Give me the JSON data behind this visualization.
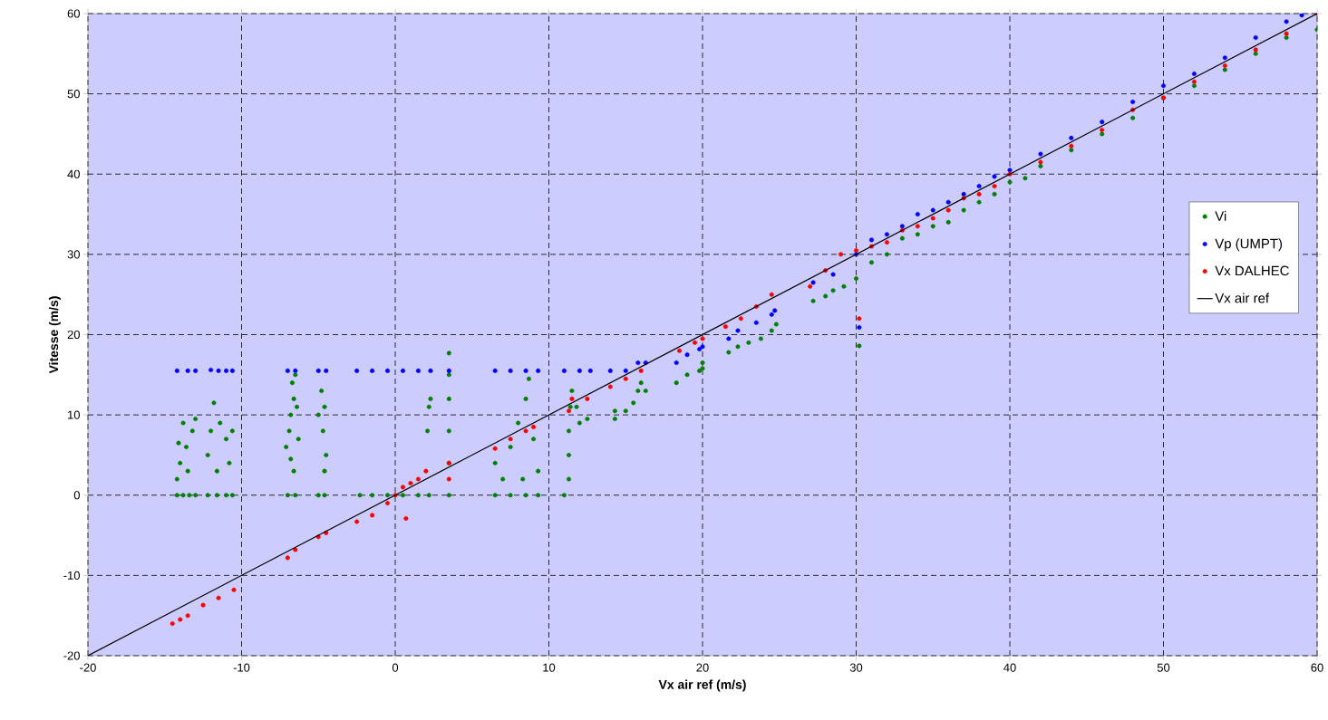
{
  "chart_data": {
    "type": "scatter",
    "xlabel": "Vx air ref (m/s)",
    "ylabel": "Vitesse (m/s)",
    "xlim": [
      -20,
      60
    ],
    "ylim": [
      -20,
      60
    ],
    "xticks": [
      -20,
      -10,
      0,
      10,
      20,
      30,
      40,
      50,
      60
    ],
    "yticks": [
      -20,
      -10,
      0,
      10,
      20,
      30,
      40,
      50,
      60
    ],
    "grid": true,
    "legend": "right",
    "marker": "circle",
    "series": [
      {
        "name": "Vi",
        "color": "#008000",
        "x": [
          -14.2,
          -13.8,
          -13.4,
          -13.0,
          -14.2,
          -14.0,
          -13.6,
          -13.2,
          -13.8,
          -13.0,
          -14.1,
          -13.5,
          -12.2,
          -11.6,
          -11.0,
          -10.6,
          -12.2,
          -12.0,
          -11.8,
          -11.4,
          -11.0,
          -10.6,
          -10.8,
          -11.6,
          -7.0,
          -6.5,
          -7.1,
          -6.9,
          -6.8,
          -6.6,
          -6.7,
          -6.5,
          -6.4,
          -6.3,
          -6.6,
          -6.8,
          -5.0,
          -4.6,
          -5.0,
          -4.8,
          -4.7,
          -4.6,
          -4.5,
          -4.6,
          -2.3,
          -1.5,
          -0.5,
          0.5,
          1.5,
          2.2,
          2.1,
          2.2,
          2.3,
          3.5,
          3.5,
          3.5,
          3.5,
          3.5,
          3.5,
          6.5,
          7.5,
          8.5,
          9.3,
          6.5,
          7.0,
          7.5,
          8.0,
          8.5,
          8.7,
          9.0,
          9.3,
          8.3,
          11.0,
          11.3,
          11.3,
          11.3,
          11.4,
          11.5,
          12.0,
          12.5,
          11.8,
          14.3,
          14.3,
          15.0,
          15.5,
          15.8,
          16.0,
          16.3,
          18.3,
          19.0,
          19.8,
          20.0,
          20.0,
          21.7,
          22.3,
          23.0,
          23.8,
          24.5,
          24.8,
          27.2,
          28.0,
          28.5,
          29.2,
          30.0,
          30.2,
          31,
          32,
          33,
          34,
          35,
          36,
          37,
          38,
          39,
          40,
          41,
          42,
          44,
          46,
          48,
          50,
          52,
          54,
          56,
          58,
          60
        ],
        "values": [
          0,
          0,
          0,
          0,
          2,
          4,
          6,
          8,
          9,
          9.5,
          6.5,
          3,
          0,
          0,
          0,
          0,
          5,
          8,
          11.5,
          9,
          7,
          8,
          4,
          3,
          0,
          0,
          6,
          8,
          10,
          12,
          14,
          15,
          11,
          7,
          3,
          4.5,
          0,
          0,
          10,
          13,
          8,
          11,
          5,
          3,
          0,
          0,
          0,
          0,
          0,
          0,
          8,
          11,
          12,
          0,
          4,
          8,
          12,
          15,
          17.7,
          0,
          0,
          0,
          0,
          4,
          2,
          6,
          9,
          12,
          14.5,
          7,
          3,
          2,
          0,
          2,
          5,
          8,
          11,
          13,
          9,
          9.5,
          11,
          9.5,
          10.5,
          10.5,
          11.5,
          13,
          14,
          13,
          14,
          15,
          15.5,
          16.5,
          15.8,
          17.8,
          18.5,
          19,
          19.5,
          20.5,
          21.3,
          24.2,
          24.8,
          25.5,
          26,
          27,
          18.6,
          29,
          30,
          32,
          32.5,
          33.5,
          34,
          35.5,
          36.5,
          37.5,
          39,
          39.5,
          41,
          43,
          45,
          47,
          49.5,
          51,
          53,
          55,
          57,
          58
        ]
      },
      {
        "name": "Vp (UMPT)",
        "color": "#0000ff",
        "x": [
          -14.2,
          -13.5,
          -13.0,
          -12.0,
          -11.5,
          -11.0,
          -10.6,
          -7.0,
          -6.5,
          -5.0,
          -4.5,
          -2.5,
          -1.5,
          -0.5,
          0.5,
          1.5,
          2.3,
          3.5,
          6.5,
          7.5,
          8.5,
          9.3,
          11.0,
          12.0,
          12.7,
          14.0,
          15.0,
          15.8,
          16.3,
          18.3,
          19.0,
          19.8,
          20.0,
          21.7,
          22.3,
          23.5,
          24.5,
          24.7,
          27.2,
          28.5,
          30.2,
          30,
          31,
          32,
          33,
          34,
          35,
          36,
          37,
          38,
          39,
          40,
          42,
          44,
          46,
          48,
          50,
          52,
          54,
          56,
          58,
          59
        ],
        "values": [
          15.5,
          15.5,
          15.5,
          15.6,
          15.5,
          15.5,
          15.5,
          15.5,
          15.5,
          15.5,
          15.5,
          15.5,
          15.5,
          15.5,
          15.5,
          15.5,
          15.5,
          15.5,
          15.5,
          15.5,
          15.5,
          15.5,
          15.5,
          15.5,
          15.5,
          15.5,
          15.5,
          16.5,
          16.5,
          16.5,
          17.5,
          18.2,
          18.5,
          19.5,
          20.5,
          21.5,
          22.5,
          23,
          26.5,
          27.5,
          20.9,
          30,
          31.8,
          32.5,
          33.5,
          35,
          35.5,
          36.5,
          37.5,
          38.5,
          39.7,
          40.5,
          42.5,
          44.5,
          46.5,
          49,
          51,
          52.5,
          54.5,
          57,
          59,
          59.8
        ]
      },
      {
        "name": "Vx DALHEC",
        "color": "#ff0000",
        "x": [
          -14.5,
          -14,
          -13.5,
          -12.5,
          -11.5,
          -10.5,
          -7,
          -6.5,
          -5,
          -4.5,
          -2.5,
          -1.5,
          -0.5,
          0,
          0.5,
          1,
          1.5,
          0.7,
          2,
          3.5,
          3.5,
          6.5,
          7.5,
          8.5,
          9,
          11.3,
          11.5,
          12.5,
          14,
          15,
          16,
          18.5,
          19.5,
          20,
          21.5,
          22.5,
          23.5,
          24.5,
          27,
          28,
          29,
          30,
          30.2,
          31,
          32,
          33,
          34,
          35,
          36,
          37,
          38,
          39,
          40,
          42,
          44,
          46,
          48,
          50,
          52,
          54,
          56,
          58,
          60
        ],
        "values": [
          -16,
          -15.5,
          -15,
          -13.7,
          -12.8,
          -11.8,
          -7.8,
          -6.8,
          -5.2,
          -4.7,
          -3.3,
          -2.5,
          -1,
          0,
          1,
          1.5,
          2,
          -2.9,
          3,
          2,
          4,
          5.8,
          7,
          8,
          8.5,
          10.5,
          12,
          12,
          13.5,
          14.5,
          15.5,
          18,
          19,
          19.5,
          21,
          22,
          23.5,
          25,
          26,
          28,
          30,
          30.5,
          22,
          31,
          31.5,
          33,
          33.5,
          34.5,
          35.5,
          37,
          37.5,
          38.5,
          40,
          41.5,
          43.5,
          45.5,
          48,
          49.5,
          51.5,
          53.5,
          55.5,
          57.5,
          60
        ]
      },
      {
        "name": "Vx air ref",
        "type": "line",
        "color": "#000000",
        "line_style": "solid",
        "marker": "none",
        "x": [
          -20,
          60
        ],
        "values": [
          -20,
          60
        ]
      }
    ]
  }
}
